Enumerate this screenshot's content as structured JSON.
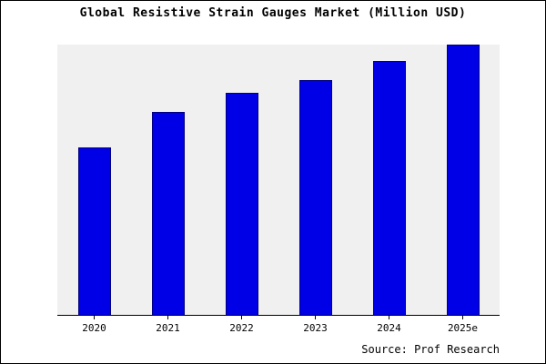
{
  "chart_data": {
    "type": "bar",
    "title": "Global Resistive Strain Gauges Market (Million USD)",
    "categories": [
      "2020",
      "2021",
      "2022",
      "2023",
      "2024",
      "2025e"
    ],
    "values": [
      62,
      75,
      82,
      87,
      94,
      100
    ],
    "xlabel": "",
    "ylabel": "",
    "ylim": [
      0,
      100
    ],
    "grid": false,
    "legend": false,
    "bar_color": "#0000E6",
    "bar_border_color": "#000080",
    "plot_bg": "#F0F0F0"
  },
  "source": {
    "text": "Source: Prof Research"
  }
}
